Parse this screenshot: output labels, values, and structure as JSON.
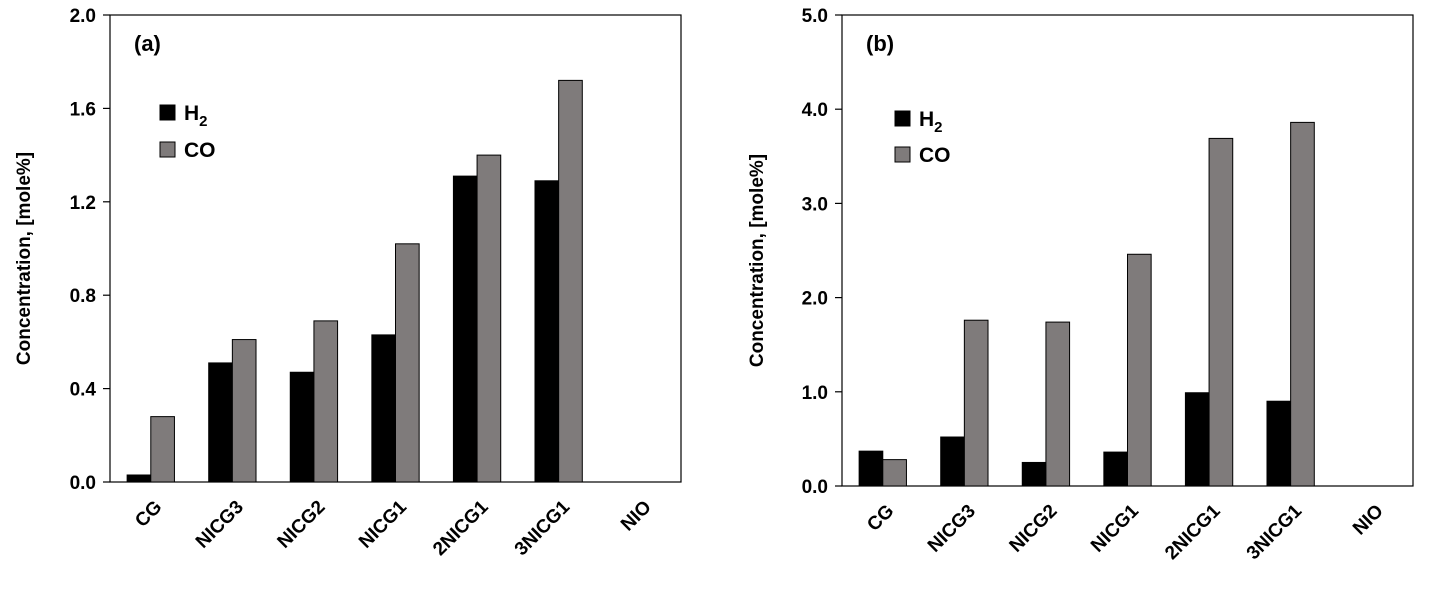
{
  "chart_data": [
    {
      "type": "bar",
      "panel_label": "(a)",
      "ylabel": "Concentration,  [mole%]",
      "ylim": [
        0,
        2.0
      ],
      "yticks": [
        "0.0",
        "0.4",
        "0.8",
        "1.2",
        "1.6",
        "2.0"
      ],
      "categories": [
        "CG",
        "NICG3",
        "NICG2",
        "NICG1",
        "2NICG1",
        "3NICG1",
        "NIO"
      ],
      "legend_position": "top-left",
      "grid": false,
      "series": [
        {
          "name": "H",
          "sub": "2",
          "color": "#000000",
          "values": [
            0.03,
            0.51,
            0.47,
            0.63,
            1.31,
            1.29,
            0
          ]
        },
        {
          "name": "CO",
          "sub": "",
          "color": "#7f7b7b",
          "values": [
            0.28,
            0.61,
            0.69,
            1.02,
            1.4,
            1.72,
            0
          ]
        }
      ]
    },
    {
      "type": "bar",
      "panel_label": "(b)",
      "ylabel": "Concentration,  [mole%]",
      "ylim": [
        0,
        5.0
      ],
      "yticks": [
        "0.0",
        "1.0",
        "2.0",
        "3.0",
        "4.0",
        "5.0"
      ],
      "categories": [
        "CG",
        "NICG3",
        "NICG2",
        "NICG1",
        "2NICG1",
        "3NICG1",
        "NIO"
      ],
      "legend_position": "top-left",
      "grid": false,
      "series": [
        {
          "name": "H",
          "sub": "2",
          "color": "#000000",
          "values": [
            0.37,
            0.52,
            0.25,
            0.36,
            0.99,
            0.9,
            0
          ]
        },
        {
          "name": "CO",
          "sub": "",
          "color": "#7f7b7b",
          "values": [
            0.28,
            1.76,
            1.74,
            2.46,
            3.69,
            3.86,
            0
          ]
        }
      ]
    }
  ]
}
